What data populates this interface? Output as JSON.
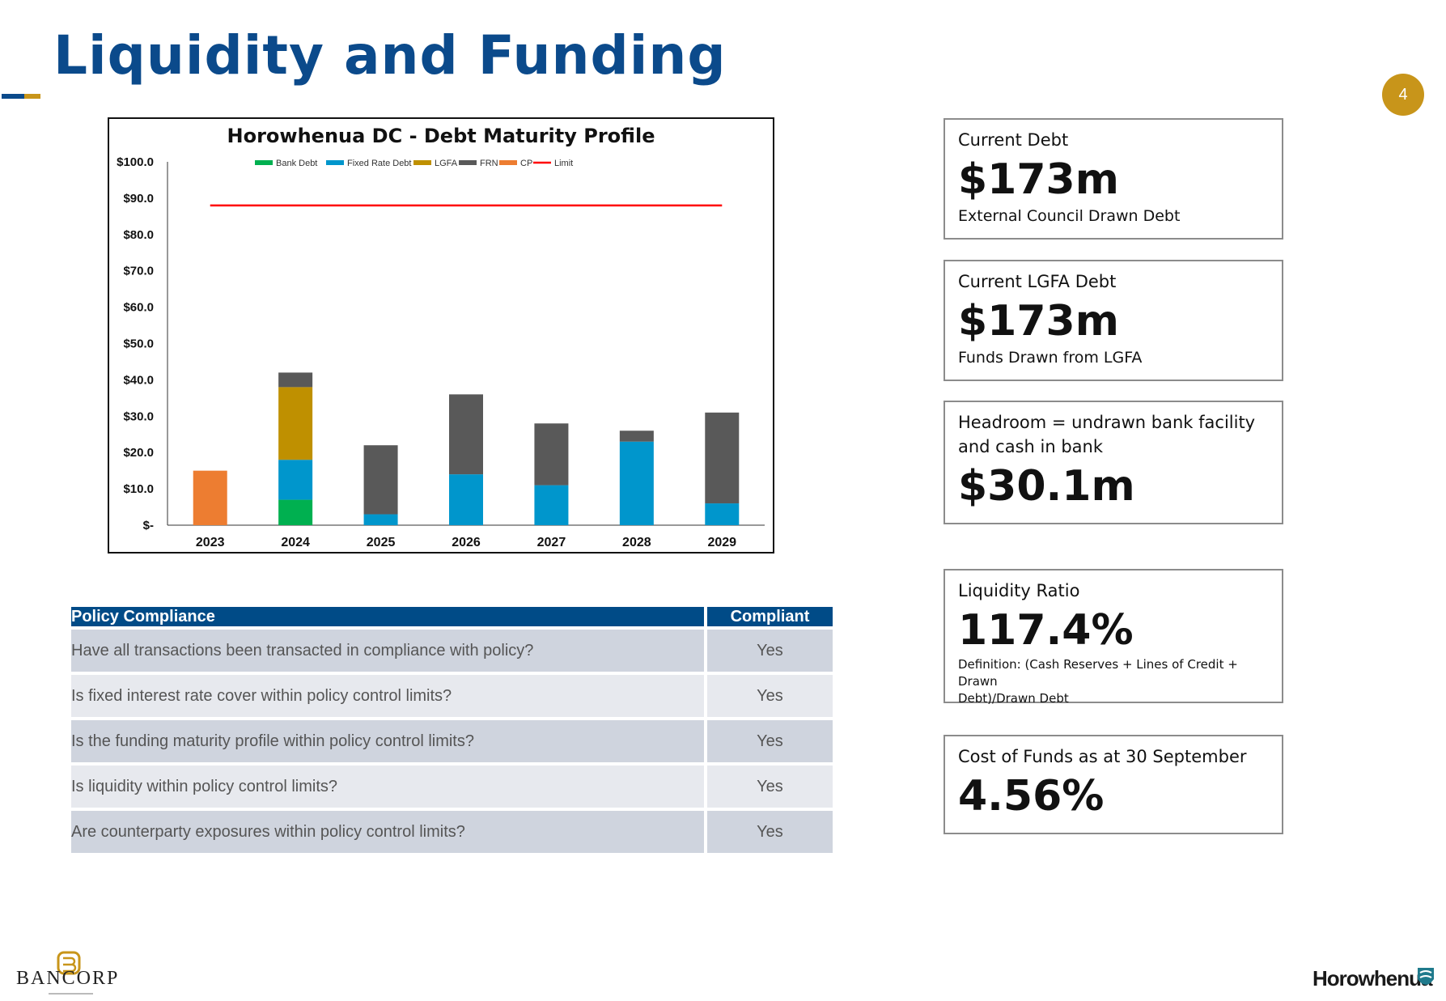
{
  "page": {
    "title": "Liquidity and Funding",
    "page_number": "4",
    "colors": {
      "title": "#0b4a8b",
      "accent_gold": "#c8951a",
      "table_header": "#004b87"
    }
  },
  "chart_data": {
    "type": "bar",
    "stacked": true,
    "title": "Horowhenua DC - Debt Maturity Profile",
    "categories": [
      "2023",
      "2024",
      "2025",
      "2026",
      "2027",
      "2028",
      "2029"
    ],
    "series": [
      {
        "name": "Bank Debt",
        "color": "#00b050",
        "values": [
          0,
          7,
          0,
          0,
          0,
          0,
          0
        ]
      },
      {
        "name": "Fixed Rate Debt",
        "color": "#0096cc",
        "values": [
          0,
          11,
          3,
          14,
          11,
          23,
          6
        ]
      },
      {
        "name": "LGFA",
        "color": "#bf9000",
        "values": [
          0,
          20,
          0,
          0,
          0,
          0,
          0
        ]
      },
      {
        "name": "FRN",
        "color": "#595959",
        "values": [
          0,
          4,
          19,
          22,
          17,
          3,
          25
        ]
      },
      {
        "name": "CP",
        "color": "#ed7d31",
        "values": [
          15,
          0,
          0,
          0,
          0,
          0,
          0
        ]
      }
    ],
    "limit": {
      "name": "Limit",
      "color": "#ff0000",
      "value": 88
    },
    "ylim": [
      0,
      100
    ],
    "yticks": [
      {
        "value": 0,
        "label": "$-"
      },
      {
        "value": 10,
        "label": "$10.0"
      },
      {
        "value": 20,
        "label": "$20.0"
      },
      {
        "value": 30,
        "label": "$30.0"
      },
      {
        "value": 40,
        "label": "$40.0"
      },
      {
        "value": 50,
        "label": "$50.0"
      },
      {
        "value": 60,
        "label": "$60.0"
      },
      {
        "value": 70,
        "label": "$70.0"
      },
      {
        "value": 80,
        "label": "$80.0"
      },
      {
        "value": 90,
        "label": "$90.0"
      },
      {
        "value": 100,
        "label": "$100.0"
      }
    ],
    "legend_position": "top",
    "grid": false
  },
  "policy": {
    "header": {
      "question": "Policy Compliance",
      "answer": "Compliant"
    },
    "rows": [
      {
        "q": "Have all transactions been transacted in compliance with policy?",
        "a": "Yes"
      },
      {
        "q": "Is fixed interest rate cover within policy control limits?",
        "a": "Yes"
      },
      {
        "q": "Is the funding maturity profile within policy control limits?",
        "a": "Yes"
      },
      {
        "q": "Is liquidity within policy control limits?",
        "a": "Yes"
      },
      {
        "q": "Are counterparty exposures within policy control limits?",
        "a": "Yes"
      }
    ]
  },
  "kpis": {
    "current_debt": {
      "label": "Current Debt",
      "value": "$173m",
      "sub": "External Council Drawn Debt"
    },
    "lgfa_debt": {
      "label": "Current LGFA Debt",
      "value": "$173m",
      "sub": "Funds Drawn from LGFA"
    },
    "headroom": {
      "label_1": "Headroom = undrawn bank facility",
      "label_2": "and cash in bank",
      "value": "$30.1m"
    },
    "liquidity": {
      "label": "Liquidity Ratio",
      "value": "117.4%",
      "def_1": "Definition: (Cash Reserves + Lines of Credit + Drawn",
      "def_2": "Debt)/Drawn Debt"
    },
    "cost_of_funds": {
      "label": "Cost of Funds as at 30 September",
      "value": "4.56%"
    }
  },
  "footer": {
    "bancorp": "BANCORP",
    "horowhenua": "Horowhenua"
  }
}
